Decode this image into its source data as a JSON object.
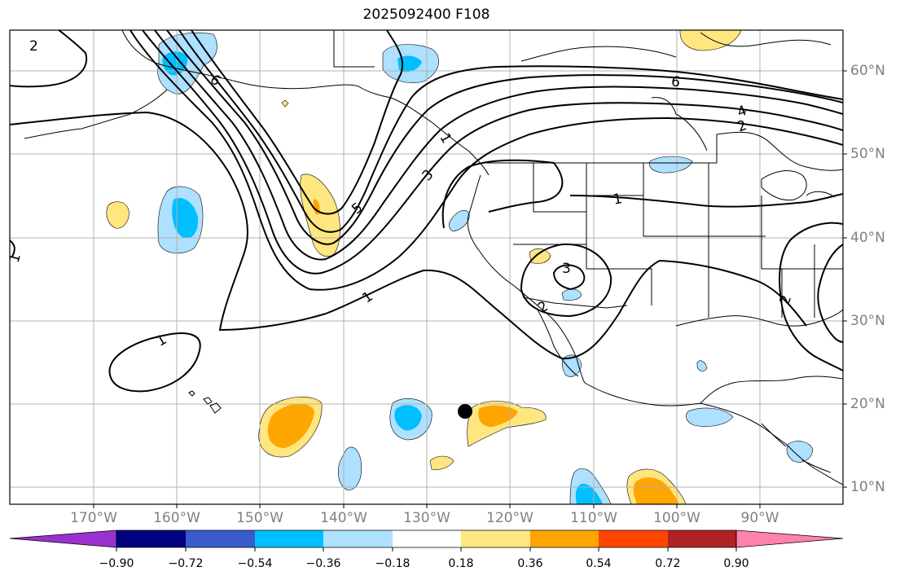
{
  "title": "2025092400 F108",
  "lat_labels": [
    "60°N",
    "50°N",
    "40°N",
    "30°N",
    "20°N",
    "10°N"
  ],
  "lon_labels": [
    "170°W",
    "160°W",
    "150°W",
    "140°W",
    "130°W",
    "120°W",
    "110°W",
    "100°W",
    "90°W"
  ],
  "colorbar": {
    "ticks": [
      "−0.90",
      "−0.72",
      "−0.54",
      "−0.36",
      "−0.18",
      "0.18",
      "0.36",
      "0.54",
      "0.72",
      "0.90"
    ],
    "colors": [
      "#9932cc",
      "#000080",
      "#3a5bcc",
      "#00bfff",
      "#aee0ff",
      "#ffffff",
      "#ffe680",
      "#ffa500",
      "#ff4500",
      "#b22222",
      "#ff82ab"
    ]
  },
  "contour_labels": [
    "2",
    "6",
    "5",
    "3",
    "1",
    "1",
    "1",
    "1",
    "6",
    "4",
    "2",
    "3",
    "2",
    "1",
    "2"
  ],
  "marker": "black-dot"
}
